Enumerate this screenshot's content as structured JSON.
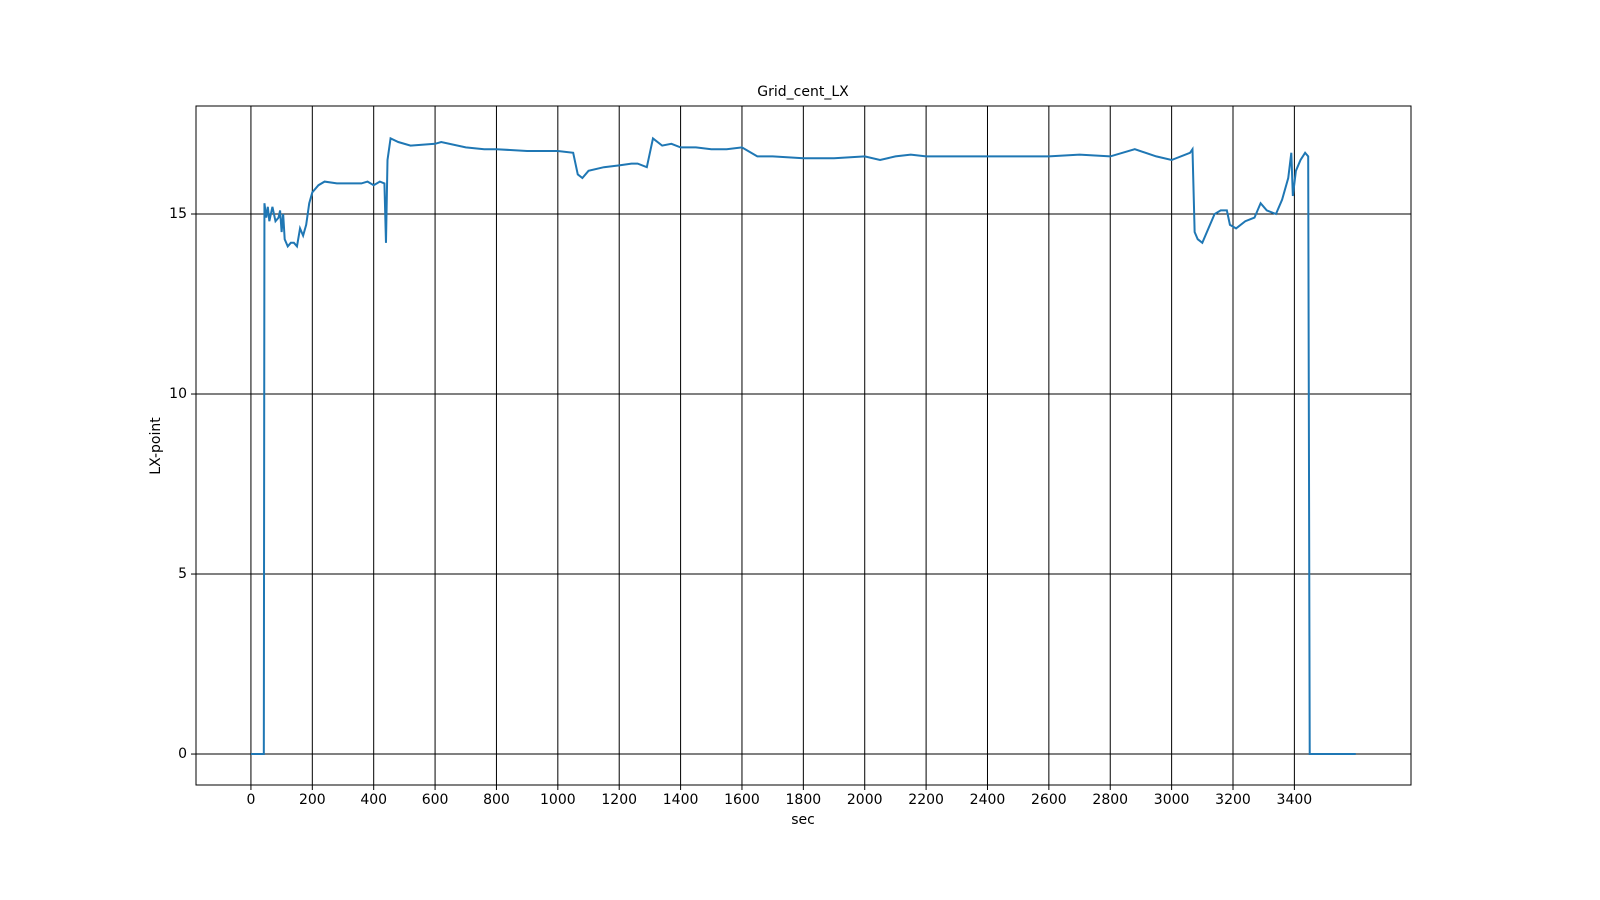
{
  "chart_data": {
    "type": "line",
    "title": "Grid_cent_LX",
    "xlabel": "sec",
    "ylabel": "LX-point",
    "x": [
      0,
      40,
      42,
      44,
      50,
      55,
      60,
      70,
      80,
      90,
      95,
      100,
      105,
      110,
      120,
      130,
      140,
      150,
      160,
      170,
      180,
      190,
      200,
      220,
      240,
      280,
      320,
      360,
      380,
      400,
      420,
      435,
      440,
      445,
      455,
      480,
      520,
      600,
      620,
      700,
      760,
      800,
      900,
      1000,
      1050,
      1065,
      1080,
      1100,
      1150,
      1200,
      1240,
      1260,
      1290,
      1310,
      1340,
      1370,
      1400,
      1450,
      1500,
      1550,
      1600,
      1650,
      1700,
      1800,
      1900,
      2000,
      2050,
      2100,
      2150,
      2200,
      2300,
      2400,
      2500,
      2600,
      2700,
      2800,
      2880,
      2950,
      3000,
      3060,
      3068,
      3075,
      3085,
      3100,
      3120,
      3140,
      3160,
      3180,
      3190,
      3210,
      3240,
      3270,
      3290,
      3310,
      3340,
      3360,
      3380,
      3390,
      3395,
      3405,
      3420,
      3435,
      3445,
      3450,
      3600
    ],
    "values": [
      0,
      0,
      0,
      15.3,
      14.9,
      15.2,
      14.8,
      15.2,
      14.8,
      14.9,
      15.1,
      14.5,
      15.0,
      14.3,
      14.1,
      14.2,
      14.2,
      14.1,
      14.6,
      14.4,
      14.7,
      15.3,
      15.6,
      15.8,
      15.9,
      15.85,
      15.85,
      15.85,
      15.9,
      15.8,
      15.9,
      15.85,
      14.2,
      16.5,
      17.1,
      17.0,
      16.9,
      16.95,
      17.0,
      16.85,
      16.8,
      16.8,
      16.75,
      16.75,
      16.7,
      16.1,
      16.0,
      16.2,
      16.3,
      16.35,
      16.4,
      16.4,
      16.3,
      17.1,
      16.9,
      16.95,
      16.85,
      16.85,
      16.8,
      16.8,
      16.85,
      16.6,
      16.6,
      16.55,
      16.55,
      16.6,
      16.5,
      16.6,
      16.65,
      16.6,
      16.6,
      16.6,
      16.6,
      16.6,
      16.65,
      16.6,
      16.8,
      16.6,
      16.5,
      16.7,
      16.8,
      14.5,
      14.3,
      14.2,
      14.6,
      15.0,
      15.1,
      15.1,
      14.7,
      14.6,
      14.8,
      14.9,
      15.3,
      15.1,
      15.0,
      15.4,
      16.0,
      16.7,
      15.5,
      16.2,
      16.5,
      16.7,
      16.6,
      0,
      0
    ],
    "color": "#1f77b4",
    "xlim": [
      -179,
      3780
    ],
    "ylim": [
      -0.86,
      18.0
    ],
    "xticks": [
      0,
      200,
      400,
      600,
      800,
      1000,
      1200,
      1400,
      1600,
      1800,
      2000,
      2200,
      2400,
      2600,
      2800,
      3000,
      3200,
      3400
    ],
    "yticks": [
      0,
      5,
      10,
      15
    ],
    "grid": true
  }
}
